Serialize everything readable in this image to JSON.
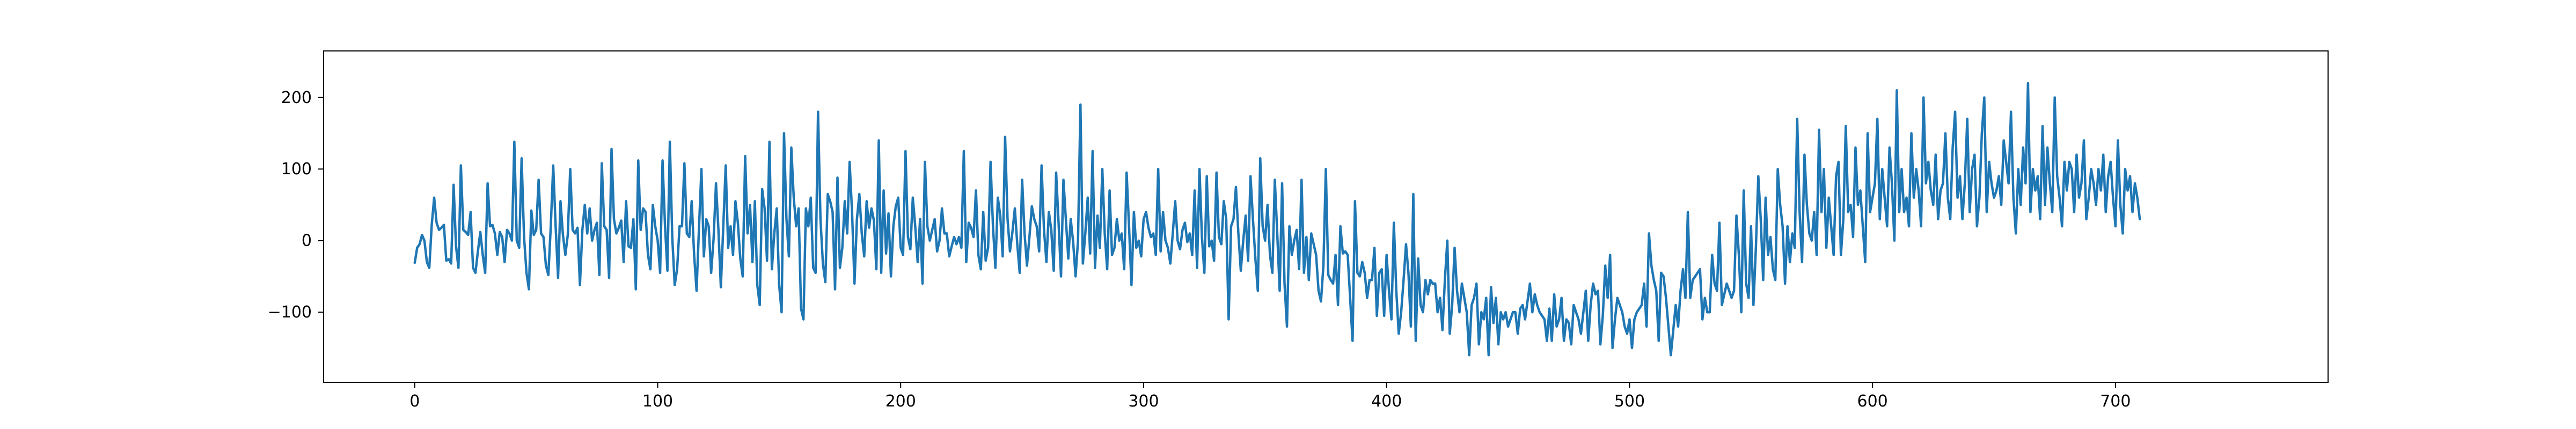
{
  "colors": {
    "background": "#ffffff",
    "axes": "#000000",
    "line": "#1f77b4"
  },
  "chart_data": {
    "type": "line",
    "title": "",
    "xlabel": "",
    "ylabel": "",
    "grid": false,
    "xlim": [
      -37.5,
      787.5
    ],
    "ylim": [
      -198,
      265
    ],
    "xticks": [
      0,
      100,
      200,
      300,
      400,
      500,
      600,
      700
    ],
    "xtick_labels": [
      "0",
      "100",
      "200",
      "300",
      "400",
      "500",
      "600",
      "700"
    ],
    "yticks": [
      -100,
      0,
      100,
      200
    ],
    "ytick_labels": [
      "−100",
      "0",
      "100",
      "200"
    ],
    "series": [
      {
        "color": "#1f77b4",
        "x_start": 0,
        "x_step": 1,
        "values": [
          -31,
          -10,
          -5,
          8,
          0,
          -30,
          -38,
          22,
          60,
          25,
          15,
          18,
          22,
          -28,
          -26,
          -32,
          78,
          -8,
          -38,
          105,
          15,
          12,
          8,
          40,
          -38,
          -45,
          -15,
          12,
          -20,
          -45,
          80,
          20,
          22,
          10,
          -20,
          12,
          5,
          -30,
          15,
          10,
          0,
          138,
          0,
          -10,
          115,
          5,
          -45,
          -68,
          42,
          8,
          15,
          85,
          10,
          5,
          -35,
          -48,
          20,
          105,
          20,
          -52,
          55,
          8,
          -20,
          8,
          100,
          15,
          10,
          18,
          -62,
          15,
          50,
          10,
          45,
          0,
          15,
          25,
          -48,
          108,
          20,
          15,
          -52,
          128,
          30,
          10,
          18,
          28,
          -30,
          55,
          -8,
          -10,
          30,
          -68,
          112,
          15,
          45,
          40,
          -20,
          -40,
          50,
          20,
          0,
          -45,
          112,
          22,
          -42,
          138,
          5,
          -62,
          -40,
          20,
          20,
          108,
          10,
          5,
          55,
          -20,
          -70,
          18,
          100,
          -22,
          30,
          20,
          -45,
          2,
          80,
          15,
          -65,
          20,
          105,
          -10,
          20,
          -20,
          55,
          25,
          -25,
          -50,
          118,
          10,
          50,
          -30,
          55,
          -62,
          -90,
          72,
          45,
          -28,
          138,
          -40,
          10,
          45,
          -62,
          -100,
          150,
          30,
          -22,
          130,
          60,
          20,
          45,
          -95,
          -110,
          45,
          20,
          60,
          -38,
          -45,
          180,
          30,
          -32,
          -58,
          65,
          55,
          40,
          -68,
          88,
          -38,
          -10,
          55,
          10,
          110,
          40,
          -60,
          30,
          65,
          10,
          -22,
          55,
          18,
          45,
          28,
          -40,
          140,
          -45,
          70,
          -18,
          38,
          -50,
          20,
          48,
          60,
          -10,
          -20,
          125,
          5,
          -12,
          60,
          20,
          -30,
          30,
          -60,
          110,
          20,
          0,
          15,
          30,
          -15,
          0,
          45,
          10,
          10,
          -22,
          -8,
          5,
          -5,
          5,
          -10,
          125,
          -30,
          25,
          18,
          5,
          70,
          -20,
          -40,
          40,
          -28,
          -10,
          110,
          20,
          -38,
          60,
          35,
          -22,
          145,
          30,
          -15,
          12,
          45,
          -5,
          -45,
          85,
          10,
          -35,
          5,
          48,
          30,
          20,
          -15,
          105,
          15,
          -30,
          40,
          15,
          -42,
          95,
          25,
          -50,
          85,
          30,
          -25,
          30,
          -2,
          -50,
          0,
          190,
          -32,
          10,
          60,
          -18,
          125,
          -38,
          35,
          -10,
          100,
          10,
          -40,
          70,
          -20,
          -10,
          30,
          0,
          10,
          -40,
          95,
          20,
          -62,
          40,
          -10,
          0,
          -22,
          30,
          40,
          18,
          5,
          10,
          -20,
          100,
          -15,
          40,
          0,
          -10,
          -32,
          10,
          55,
          0,
          -12,
          15,
          25,
          -2,
          10,
          -20,
          70,
          -38,
          100,
          5,
          -45,
          90,
          -8,
          0,
          -28,
          95,
          5,
          -5,
          55,
          30,
          -110,
          20,
          30,
          75,
          10,
          -42,
          0,
          35,
          -28,
          90,
          30,
          -25,
          -70,
          115,
          20,
          0,
          50,
          -20,
          -45,
          85,
          10,
          -70,
          80,
          -60,
          -120,
          20,
          -20,
          0,
          15,
          -40,
          85,
          -45,
          5,
          -55,
          10,
          -5,
          -20,
          -70,
          -85,
          -35,
          100,
          -48,
          -55,
          -60,
          -20,
          -90,
          20,
          -18,
          -15,
          -20,
          -80,
          -140,
          55,
          -45,
          -50,
          -30,
          -45,
          -80,
          -55,
          -55,
          -10,
          -105,
          -45,
          -40,
          -105,
          -20,
          -70,
          -110,
          25,
          -70,
          -130,
          -100,
          -55,
          -5,
          -45,
          -120,
          65,
          -140,
          -25,
          -90,
          -100,
          -55,
          -75,
          -55,
          -60,
          -60,
          -100,
          -80,
          -125,
          -55,
          0,
          -130,
          -90,
          -10,
          -70,
          -100,
          -60,
          -80,
          -100,
          -160,
          -90,
          -80,
          -60,
          -145,
          -100,
          -110,
          -80,
          -160,
          -65,
          -115,
          -80,
          -145,
          -100,
          -110,
          -100,
          -120,
          -110,
          -100,
          -100,
          -130,
          -95,
          -90,
          -110,
          -85,
          -60,
          -100,
          -75,
          -90,
          -100,
          -105,
          -110,
          -140,
          -95,
          -140,
          -75,
          -120,
          -110,
          -80,
          -140,
          -110,
          -115,
          -145,
          -90,
          -100,
          -110,
          -130,
          -100,
          -70,
          -140,
          -90,
          -60,
          -75,
          -70,
          -145,
          -105,
          -35,
          -80,
          -20,
          -150,
          -110,
          -80,
          -90,
          -100,
          -120,
          -130,
          -110,
          -150,
          -110,
          -100,
          -95,
          -90,
          -60,
          -120,
          10,
          -35,
          -55,
          -70,
          -140,
          -45,
          -50,
          -80,
          -120,
          -160,
          -125,
          -90,
          -120,
          -70,
          -40,
          -80,
          40,
          -80,
          -55,
          -50,
          -45,
          -40,
          -110,
          -80,
          -100,
          -100,
          -20,
          -60,
          -70,
          25,
          -90,
          -75,
          -60,
          -70,
          -80,
          -70,
          35,
          -20,
          -100,
          70,
          -60,
          -80,
          20,
          -90,
          -10,
          90,
          30,
          -55,
          60,
          -20,
          5,
          -40,
          -55,
          100,
          50,
          20,
          -60,
          20,
          -30,
          10,
          -10,
          170,
          40,
          -30,
          120,
          50,
          10,
          0,
          40,
          -20,
          155,
          40,
          100,
          -10,
          60,
          20,
          -20,
          90,
          110,
          -20,
          30,
          160,
          40,
          50,
          5,
          130,
          50,
          70,
          20,
          -30,
          150,
          40,
          60,
          80,
          170,
          30,
          100,
          60,
          20,
          130,
          80,
          0,
          210,
          40,
          100,
          40,
          60,
          20,
          150,
          60,
          100,
          70,
          20,
          200,
          80,
          110,
          70,
          50,
          120,
          30,
          70,
          80,
          150,
          60,
          30,
          130,
          180,
          60,
          90,
          30,
          80,
          170,
          40,
          100,
          120,
          20,
          60,
          150,
          200,
          40,
          110,
          80,
          60,
          70,
          90,
          50,
          140,
          110,
          80,
          180,
          60,
          10,
          100,
          50,
          130,
          80,
          220,
          40,
          100,
          70,
          90,
          30,
          160,
          50,
          130,
          80,
          40,
          200,
          90,
          60,
          20,
          110,
          70,
          110,
          100,
          40,
          120,
          60,
          80,
          140,
          30,
          60,
          100,
          80,
          50,
          100,
          70,
          120,
          40,
          90,
          110,
          60,
          20,
          140,
          50,
          10,
          100,
          70,
          90,
          40,
          80,
          60,
          30
        ]
      }
    ]
  }
}
